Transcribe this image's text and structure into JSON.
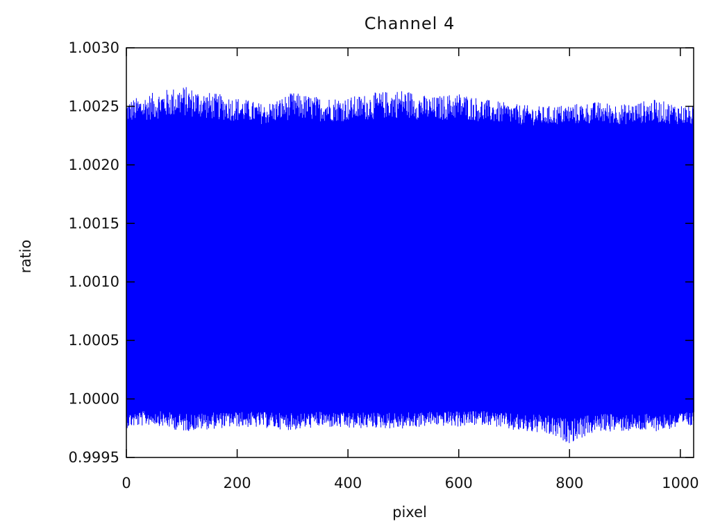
{
  "chart_data": {
    "type": "line",
    "title": "Channel  4",
    "xlabel": "pixel",
    "ylabel": "ratio",
    "xlim": [
      0,
      1024
    ],
    "ylim": [
      0.9995,
      1.003
    ],
    "x_ticks": [
      0,
      200,
      400,
      600,
      800,
      1000
    ],
    "x_tick_labels": [
      "0",
      "200",
      "400",
      "600",
      "800",
      "1000"
    ],
    "y_ticks": [
      0.9995,
      1.0,
      1.0005,
      1.001,
      1.0015,
      1.002,
      1.0025,
      1.003
    ],
    "y_tick_labels": [
      "0.9995",
      "1.0000",
      "1.0005",
      "1.0010",
      "1.0015",
      "1.0020",
      "1.0025",
      "1.0030"
    ],
    "grid": false,
    "series": [
      {
        "color": "#0000ff",
        "x_range": [
          0,
          1024
        ],
        "description_values": {
          "dense_band_low": 1.0,
          "dense_band_high": 1.0022,
          "upper_spikes_max": 1.0027,
          "lower_spikes_min": 0.9996
        },
        "envelope": {
          "x": [
            0,
            50,
            100,
            150,
            200,
            250,
            300,
            350,
            400,
            450,
            500,
            550,
            600,
            650,
            700,
            750,
            800,
            850,
            900,
            950,
            1000,
            1024
          ],
          "upper": [
            1.00255,
            1.00262,
            1.00268,
            1.00262,
            1.00258,
            1.00252,
            1.00262,
            1.00258,
            1.00258,
            1.00262,
            1.00265,
            1.00258,
            1.00262,
            1.00256,
            1.00252,
            1.0025,
            1.00252,
            1.00254,
            1.00252,
            1.00256,
            1.00252,
            1.0025
          ],
          "lower": [
            0.99975,
            0.99978,
            0.99972,
            0.99974,
            0.99976,
            0.99975,
            0.99973,
            0.99976,
            0.99974,
            0.99975,
            0.99974,
            0.99977,
            0.99976,
            0.99978,
            0.99972,
            0.9997,
            0.99962,
            0.99972,
            0.99972,
            0.99972,
            0.99975,
            0.99976
          ]
        }
      }
    ]
  }
}
